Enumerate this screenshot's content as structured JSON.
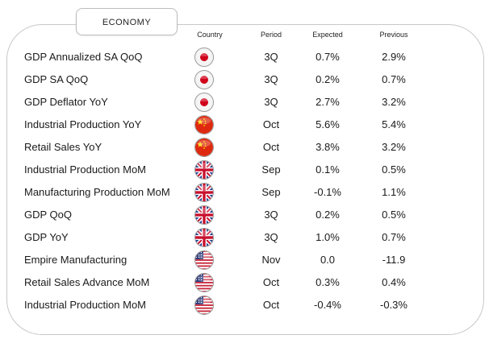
{
  "section_title": "ECONOMY",
  "columns": {
    "country": "Country",
    "period": "Period",
    "expected": "Expected",
    "previous": "Previous"
  },
  "rows": [
    {
      "indicator": "GDP Annualized SA QoQ",
      "flag": "japan-flag-icon",
      "period": "3Q",
      "expected": "0.7%",
      "previous": "2.9%"
    },
    {
      "indicator": "GDP SA QoQ",
      "flag": "japan-flag-icon",
      "period": "3Q",
      "expected": "0.2%",
      "previous": "0.7%"
    },
    {
      "indicator": "GDP Deflator YoY",
      "flag": "japan-flag-icon",
      "period": "3Q",
      "expected": "2.7%",
      "previous": "3.2%"
    },
    {
      "indicator": "Industrial Production YoY",
      "flag": "china-flag-icon",
      "period": "Oct",
      "expected": "5.6%",
      "previous": "5.4%"
    },
    {
      "indicator": "Retail Sales YoY",
      "flag": "china-flag-icon",
      "period": "Oct",
      "expected": "3.8%",
      "previous": "3.2%"
    },
    {
      "indicator": "Industrial Production MoM",
      "flag": "uk-flag-icon",
      "period": "Sep",
      "expected": "0.1%",
      "previous": "0.5%"
    },
    {
      "indicator": "Manufacturing Production MoM",
      "flag": "uk-flag-icon",
      "period": "Sep",
      "expected": "-0.1%",
      "previous": "1.1%"
    },
    {
      "indicator": "GDP QoQ",
      "flag": "uk-flag-icon",
      "period": "3Q",
      "expected": "0.2%",
      "previous": "0.5%"
    },
    {
      "indicator": "GDP YoY",
      "flag": "uk-flag-icon",
      "period": "3Q",
      "expected": "1.0%",
      "previous": "0.7%"
    },
    {
      "indicator": "Empire Manufacturing",
      "flag": "us-flag-icon",
      "period": "Nov",
      "expected": "0.0",
      "previous": "-11.9"
    },
    {
      "indicator": "Retail Sales Advance MoM",
      "flag": "us-flag-icon",
      "period": "Oct",
      "expected": "0.3%",
      "previous": "0.4%"
    },
    {
      "indicator": "Industrial Production MoM",
      "flag": "us-flag-icon",
      "period": "Oct",
      "expected": "-0.4%",
      "previous": "-0.3%"
    }
  ],
  "colors": {
    "japan_red": "#d0021b",
    "china_red": "#de2910",
    "china_yellow": "#ffde00",
    "uk_blue": "#1f3f8f",
    "uk_red": "#c8102e",
    "us_blue": "#2b3a78",
    "us_red": "#c8283c"
  }
}
